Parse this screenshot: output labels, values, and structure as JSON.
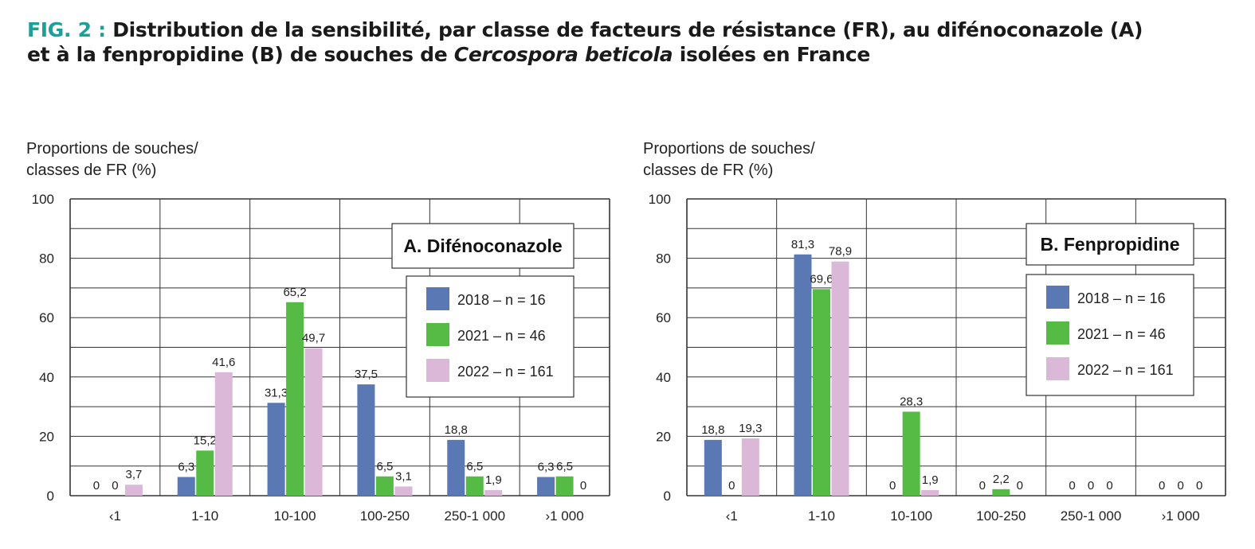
{
  "figure": {
    "label": "FIG. 2 :",
    "title_part1": "Distribution de la sensibilité, par classe de facteurs de résistance (FR), au difénoconazole (A)",
    "title_part2": "et à la fenpropidine (B) de souches de",
    "title_species": "Cercospora beticola",
    "title_part3": "isolées en France"
  },
  "colors": {
    "2018": "#5a78b4",
    "2021": "#55bb44",
    "2022": "#dcb8d8",
    "grid": "#333333",
    "title_accent": "#1ea09a"
  },
  "chart_data": [
    {
      "type": "bar",
      "panel_label": "A. Difénoconazole",
      "ylabel_lines": [
        "Proportions de souches/",
        "classes de FR (%)"
      ],
      "ylim": [
        0,
        100
      ],
      "yticks": [
        0,
        20,
        40,
        60,
        80,
        100
      ],
      "categories": [
        "‹1",
        "1-10",
        "10-100",
        "100-250",
        "250-1 000",
        "›1 000"
      ],
      "series": [
        {
          "name": "2018 – n = 16",
          "year": "2018",
          "values": [
            0,
            6.3,
            31.3,
            37.5,
            18.8,
            6.3
          ],
          "labels": [
            "0",
            "6,3",
            "31,3",
            "37,5",
            "18,8",
            "6,3"
          ]
        },
        {
          "name": "2021 – n = 46",
          "year": "2021",
          "values": [
            0,
            15.2,
            65.2,
            6.5,
            6.5,
            6.5
          ],
          "labels": [
            "0",
            "15,2",
            "65,2",
            "6,5",
            "6,5",
            "6,5"
          ]
        },
        {
          "name": "2022 – n = 161",
          "year": "2022",
          "values": [
            3.7,
            41.6,
            49.7,
            3.1,
            1.9,
            0
          ],
          "labels": [
            "3,7",
            "41,6",
            "49,7",
            "3,1",
            "1,9",
            "0"
          ]
        }
      ],
      "legend": "top-right",
      "grid": true
    },
    {
      "type": "bar",
      "panel_label": "B. Fenpropidine",
      "ylabel_lines": [
        "Proportions de souches/",
        "classes de FR (%)"
      ],
      "ylim": [
        0,
        100
      ],
      "yticks": [
        0,
        20,
        40,
        60,
        80,
        100
      ],
      "categories": [
        "‹1",
        "1-10",
        "10-100",
        "100-250",
        "250-1 000",
        "›1 000"
      ],
      "series": [
        {
          "name": "2018 – n = 16",
          "year": "2018",
          "values": [
            18.8,
            81.3,
            0,
            0,
            0,
            0
          ],
          "labels": [
            "18,8",
            "81,3",
            "0",
            "0",
            "0",
            "0"
          ]
        },
        {
          "name": "2021 – n = 46",
          "year": "2021",
          "values": [
            0,
            69.6,
            28.3,
            2.2,
            0,
            0
          ],
          "labels": [
            "0",
            "69,6",
            "28,3",
            "2,2",
            "0",
            "0"
          ]
        },
        {
          "name": "2022 – n = 161",
          "year": "2022",
          "values": [
            19.3,
            78.9,
            1.9,
            0,
            0,
            0
          ],
          "labels": [
            "19,3",
            "78,9",
            "1,9",
            "0",
            "0",
            "0"
          ]
        }
      ],
      "legend": "top-right",
      "grid": true
    }
  ]
}
